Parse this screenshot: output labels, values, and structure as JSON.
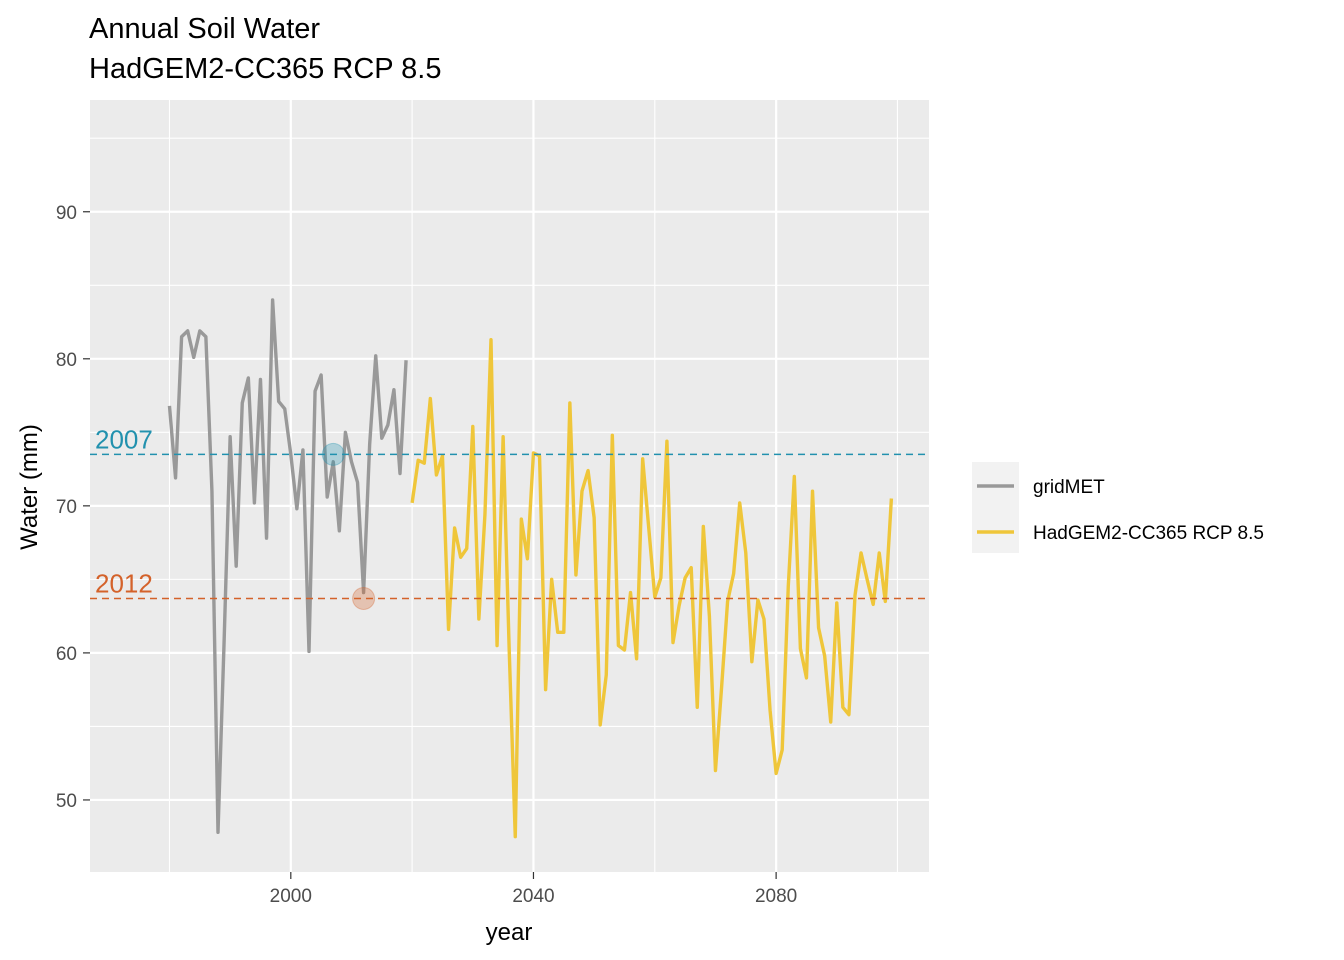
{
  "chart_data": {
    "type": "line",
    "title": "Annual Soil Water",
    "subtitle": "HadGEM2-CC365 RCP 8.5",
    "xlabel": "year",
    "ylabel": "Water (mm)",
    "xlim": [
      1966.9,
      2105.2
    ],
    "ylim": [
      45.1,
      97.6
    ],
    "x_ticks": [
      2000,
      2040,
      2080
    ],
    "x_tick_labels": [
      "2000",
      "2040",
      "2080"
    ],
    "y_ticks": [
      50,
      60,
      70,
      80,
      90
    ],
    "y_tick_labels": [
      "50",
      "60",
      "70",
      "80",
      "90"
    ],
    "grid": true,
    "legend_position": "right",
    "series": [
      {
        "name": "gridMET",
        "color": "#999999",
        "x": [
          1980,
          1981,
          1982,
          1983,
          1984,
          1985,
          1986,
          1987,
          1988,
          1989,
          1990,
          1991,
          1992,
          1993,
          1994,
          1995,
          1996,
          1997,
          1998,
          1999,
          2000,
          2001,
          2002,
          2003,
          2004,
          2005,
          2006,
          2007,
          2008,
          2009,
          2010,
          2011,
          2012,
          2013,
          2014,
          2015,
          2016,
          2017,
          2018,
          2019
        ],
        "values": [
          76.8,
          71.9,
          81.5,
          81.9,
          80.1,
          81.9,
          81.5,
          71.0,
          47.8,
          60.7,
          74.7,
          65.9,
          77.0,
          78.7,
          70.2,
          78.6,
          67.8,
          84.0,
          77.1,
          76.6,
          73.5,
          69.8,
          73.8,
          60.1,
          77.8,
          78.9,
          70.6,
          73.0,
          68.3,
          75.0,
          73.0,
          71.6,
          64.1,
          74.2,
          80.2,
          74.6,
          75.5,
          77.9,
          72.2,
          79.9
        ]
      },
      {
        "name": "HadGEM2-CC365 RCP 8.5",
        "color": "#EFC63A",
        "x": [
          2020,
          2021,
          2022,
          2023,
          2024,
          2025,
          2026,
          2027,
          2028,
          2029,
          2030,
          2031,
          2032,
          2033,
          2034,
          2035,
          2036,
          2037,
          2038,
          2039,
          2040,
          2041,
          2042,
          2043,
          2044,
          2045,
          2046,
          2047,
          2048,
          2049,
          2050,
          2051,
          2052,
          2053,
          2054,
          2055,
          2056,
          2057,
          2058,
          2059,
          2060,
          2061,
          2062,
          2063,
          2064,
          2065,
          2066,
          2067,
          2068,
          2069,
          2070,
          2071,
          2072,
          2073,
          2074,
          2075,
          2076,
          2077,
          2078,
          2079,
          2080,
          2081,
          2082,
          2083,
          2084,
          2085,
          2086,
          2087,
          2088,
          2089,
          2090,
          2091,
          2092,
          2093,
          2094,
          2095,
          2096,
          2097,
          2098,
          2099
        ],
        "values": [
          70.2,
          73.1,
          72.9,
          77.3,
          72.1,
          73.4,
          61.6,
          68.5,
          66.5,
          67.1,
          75.4,
          62.3,
          69.4,
          81.3,
          60.5,
          74.7,
          60.2,
          47.5,
          69.1,
          66.4,
          73.6,
          73.4,
          57.5,
          65.0,
          61.4,
          61.4,
          77.0,
          65.3,
          71.0,
          72.4,
          69.2,
          55.1,
          58.5,
          74.8,
          60.5,
          60.2,
          64.1,
          59.6,
          73.2,
          68.5,
          63.8,
          65.1,
          74.4,
          60.7,
          63.2,
          65.1,
          65.8,
          56.3,
          68.6,
          62.5,
          52.0,
          57.6,
          63.5,
          65.4,
          70.2,
          66.8,
          59.4,
          63.6,
          62.3,
          56.1,
          51.8,
          53.4,
          64.5,
          72.0,
          60.3,
          58.3,
          71.0,
          61.7,
          59.8,
          55.3,
          63.4,
          56.3,
          55.8,
          63.9,
          66.8,
          65.0,
          63.3,
          66.8,
          63.5,
          70.5
        ]
      }
    ],
    "reference_lines": [
      {
        "label": "2007",
        "year": 2007,
        "value": 73.5,
        "color": "#2291AE"
      },
      {
        "label": "2012",
        "year": 2012,
        "value": 63.7,
        "color": "#D4622A"
      }
    ],
    "panel_background": "#EBEBEB",
    "grid_color": "#FFFFFF",
    "legend_background": "#F2F2F2"
  }
}
